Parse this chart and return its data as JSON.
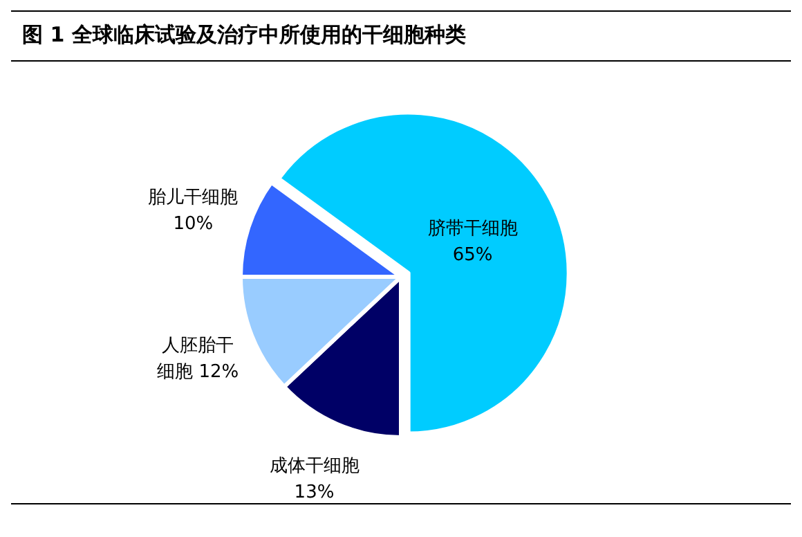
{
  "chart_data": {
    "type": "pie",
    "title": "图 1 全球临床试验及治疗中所使用的干细胞种类",
    "categories": [
      "脐带干细胞",
      "成体干细胞",
      "人胚胎干细胞",
      "胎儿干细胞"
    ],
    "values": [
      65,
      13,
      12,
      10
    ],
    "value_labels": [
      "65%",
      "13%",
      "12%",
      "10%"
    ],
    "colors": [
      "#00ccff",
      "#000066",
      "#99ccff",
      "#3366ff"
    ]
  }
}
